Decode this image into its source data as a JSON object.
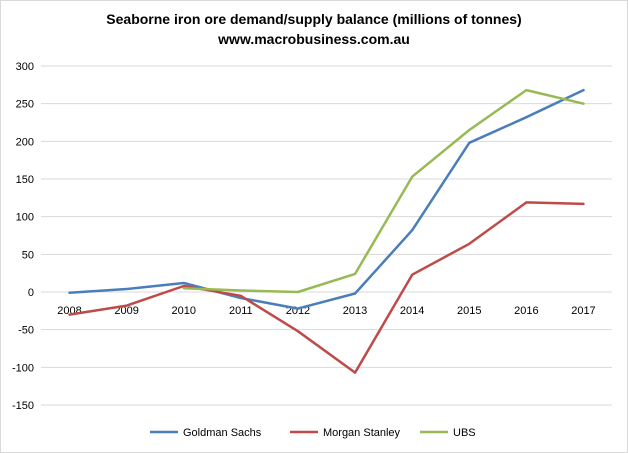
{
  "chart_data": {
    "type": "line",
    "title": "Seaborne iron ore demand/supply balance (millions of tonnes)",
    "subtitle": "www.macrobusiness.com.au",
    "xlabel": "",
    "ylabel": "",
    "categories": [
      "2008",
      "2009",
      "2010",
      "2011",
      "2012",
      "2013",
      "2014",
      "2015",
      "2016",
      "2017"
    ],
    "ylim": [
      -150,
      300
    ],
    "yticks": [
      -150,
      -100,
      -50,
      0,
      50,
      100,
      150,
      200,
      250,
      300
    ],
    "grid": true,
    "legend_position": "bottom",
    "series": [
      {
        "name": "Goldman Sachs",
        "color": "#4a7ebb",
        "values": [
          -1,
          4,
          12,
          -8,
          -22,
          -2,
          82,
          198,
          232,
          268
        ]
      },
      {
        "name": "Morgan Stanley",
        "color": "#be4b48",
        "values": [
          -30,
          -18,
          8,
          -5,
          -52,
          -107,
          23,
          64,
          119,
          117
        ]
      },
      {
        "name": "UBS",
        "color": "#98b954",
        "values": [
          null,
          null,
          5,
          2,
          0,
          24,
          153,
          215,
          268,
          250
        ]
      }
    ]
  }
}
